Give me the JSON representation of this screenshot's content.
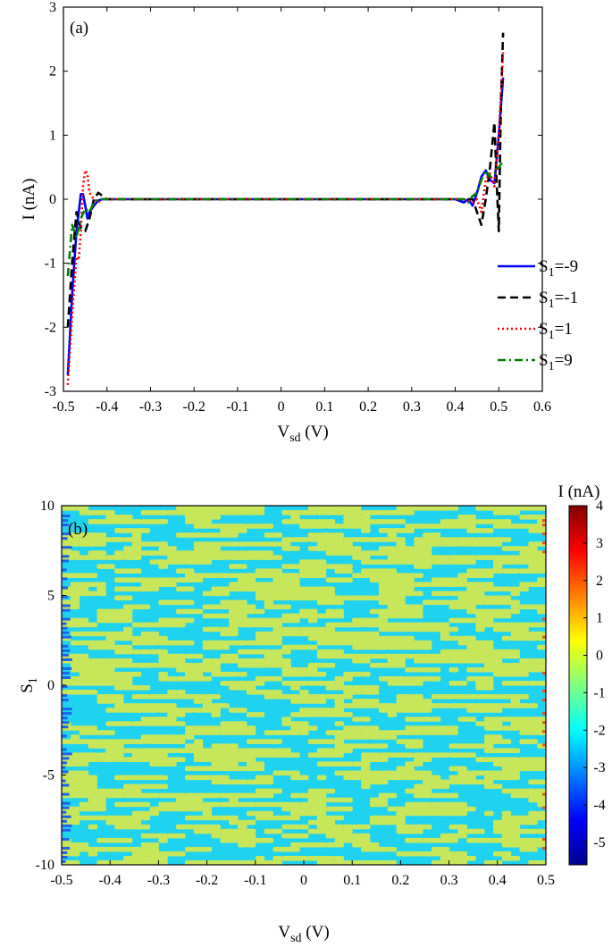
{
  "chart_data": [
    {
      "type": "line",
      "panel_label": "(a)",
      "xlabel": {
        "main": "V",
        "sub": "sd",
        "unit": " (V)"
      },
      "ylabel": "I (nA)",
      "xlim": [
        -0.5,
        0.6
      ],
      "ylim": [
        -3,
        3
      ],
      "xticks": [
        -0.5,
        -0.4,
        -0.3,
        -0.2,
        -0.1,
        0,
        0.1,
        0.2,
        0.3,
        0.4,
        0.5,
        0.6
      ],
      "xtick_labels": [
        "-0.5",
        "-0.4",
        "-0.3",
        "-0.2",
        "-0.1",
        "0",
        "0.1",
        "0.2",
        "0.3",
        "0.4",
        "0.5",
        "0.6"
      ],
      "yticks": [
        -3,
        -2,
        -1,
        0,
        1,
        2,
        3
      ],
      "ytick_labels": [
        "-3",
        "-2",
        "-1",
        "0",
        "1",
        "2",
        "3"
      ],
      "legend_placement": "lower-right",
      "grid": false,
      "series": [
        {
          "name_main": "S",
          "name_sub": "1",
          "name_rest": "=-9",
          "color": "#0000ff",
          "dash": "solid",
          "x": [
            -0.49,
            -0.48,
            -0.47,
            -0.46,
            -0.455,
            -0.45,
            -0.445,
            -0.44,
            -0.43,
            -0.42,
            -0.41,
            -0.4,
            0.0,
            0.4,
            0.42,
            0.43,
            0.44,
            0.45,
            0.46,
            0.47,
            0.48,
            0.49,
            0.5,
            0.51
          ],
          "y": [
            -2.75,
            -1.5,
            -0.5,
            0.08,
            0.08,
            -0.1,
            -0.3,
            -0.2,
            -0.1,
            -0.02,
            0.0,
            0.0,
            0.0,
            0.0,
            -0.05,
            0.0,
            -0.1,
            0.1,
            0.35,
            0.45,
            0.3,
            0.25,
            1.0,
            1.9
          ]
        },
        {
          "name_main": "S",
          "name_sub": "1",
          "name_rest": "=-1",
          "color": "#000000",
          "dash": "dashed",
          "x": [
            -0.49,
            -0.48,
            -0.47,
            -0.46,
            -0.45,
            -0.44,
            -0.43,
            -0.42,
            -0.41,
            -0.4,
            0.0,
            0.4,
            0.42,
            0.44,
            0.46,
            0.47,
            0.48,
            0.49,
            0.495,
            0.5,
            0.505,
            0.51
          ],
          "y": [
            -2.0,
            -1.0,
            -0.2,
            -0.45,
            -0.5,
            -0.3,
            0.0,
            0.1,
            0.05,
            0.0,
            0.0,
            0.0,
            0.0,
            0.0,
            -0.4,
            0.0,
            0.5,
            1.2,
            0.3,
            -0.5,
            1.5,
            2.6
          ]
        },
        {
          "name_main": "S",
          "name_sub": "1",
          "name_rest": "=1",
          "color": "#ff0000",
          "dash": "dotted",
          "x": [
            -0.49,
            -0.48,
            -0.47,
            -0.465,
            -0.46,
            -0.455,
            -0.45,
            -0.445,
            -0.44,
            -0.43,
            -0.42,
            -0.41,
            -0.4,
            0.0,
            0.4,
            0.42,
            0.44,
            0.45,
            0.46,
            0.47,
            0.48,
            0.49,
            0.5,
            0.51
          ],
          "y": [
            -2.9,
            -1.8,
            -0.9,
            -0.95,
            -0.5,
            0.2,
            0.45,
            0.4,
            0.1,
            0.0,
            -0.05,
            0.0,
            0.0,
            0.0,
            0.0,
            0.0,
            -0.05,
            0.0,
            -0.2,
            0.3,
            0.4,
            0.2,
            1.0,
            2.3
          ]
        },
        {
          "name_main": "S",
          "name_sub": "1",
          "name_rest": "=9",
          "color": "#007f00",
          "dash": "dashdot",
          "x": [
            -0.49,
            -0.48,
            -0.47,
            -0.46,
            -0.45,
            -0.44,
            -0.43,
            -0.42,
            -0.41,
            -0.4,
            0.0,
            0.4,
            0.42,
            0.43,
            0.44,
            0.45,
            0.46,
            0.47,
            0.48,
            0.49,
            0.5,
            0.51
          ],
          "y": [
            -1.2,
            -0.4,
            -0.6,
            -0.3,
            -0.15,
            -0.2,
            -0.05,
            0.0,
            0.0,
            0.0,
            0.0,
            0.0,
            0.0,
            -0.05,
            0.05,
            0.1,
            0.3,
            0.45,
            0.35,
            0.4,
            0.5,
            0.6
          ]
        }
      ]
    },
    {
      "type": "heatmap",
      "panel_label": "(b)",
      "xlabel": {
        "main": "V",
        "sub": "sd",
        "unit": " (V)"
      },
      "ylabel": {
        "main": "S",
        "sub": "1"
      },
      "xlim": [
        -0.5,
        0.5
      ],
      "ylim": [
        -10,
        10
      ],
      "xticks": [
        -0.5,
        -0.4,
        -0.3,
        -0.2,
        -0.1,
        0,
        0.1,
        0.2,
        0.3,
        0.4,
        0.5
      ],
      "xtick_labels": [
        "-0.5",
        "-0.4",
        "-0.3",
        "-0.2",
        "-0.1",
        "0",
        "0.1",
        "0.2",
        "0.3",
        "0.4",
        "0.5"
      ],
      "yticks": [
        -10,
        -5,
        0,
        5,
        10
      ],
      "ytick_labels": [
        "-10",
        "-5",
        "0",
        "5",
        "10"
      ],
      "colorbar": {
        "title": "I (nA)",
        "range": [
          -5.6,
          4
        ],
        "ticks": [
          4,
          3,
          2,
          1,
          0,
          -1,
          -2,
          -3,
          -4,
          -5
        ],
        "tick_labels": [
          "4",
          "3",
          "2",
          "1",
          "0",
          "-1",
          "-2",
          "-3",
          "-4",
          "-5"
        ],
        "colormap": "jet"
      },
      "dominant_colors": {
        "cyan": "#1ed2f0",
        "yellow_green": "#c8e65a",
        "edge_blue": "#1e64f0",
        "edge_red": "#e6501e"
      },
      "grid": false
    }
  ]
}
